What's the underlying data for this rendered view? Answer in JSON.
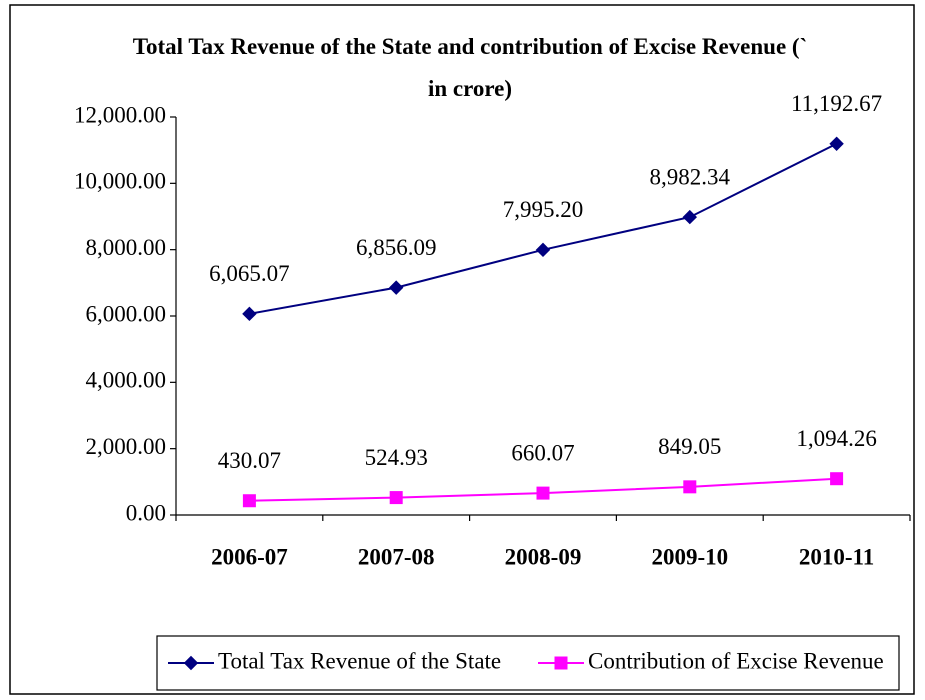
{
  "chart_data": {
    "type": "line",
    "title": "Total Tax Revenue of the State and contribution of Excise Revenue (`  in crore)",
    "categories": [
      "2006-07",
      "2007-08",
      "2008-09",
      "2009-10",
      "2010-11"
    ],
    "series": [
      {
        "name": "Total Tax Revenue of the State",
        "color": "#000080",
        "marker": "diamond",
        "values": [
          6065.07,
          6856.09,
          7995.2,
          8982.34,
          11192.67
        ],
        "value_labels": [
          "6,065.07",
          "6,856.09",
          "7,995.20",
          "8,982.34",
          "11,192.67"
        ]
      },
      {
        "name": "Contribution of Excise Revenue",
        "color": "#ff00ff",
        "marker": "square",
        "values": [
          430.07,
          524.93,
          660.07,
          849.05,
          1094.26
        ],
        "value_labels": [
          "430.07",
          "524.93",
          "660.07",
          "849.05",
          "1,094.26"
        ]
      }
    ],
    "ylim": [
      0,
      12000
    ],
    "yticks": [
      {
        "value": 0,
        "label": "0.00"
      },
      {
        "value": 2000,
        "label": "2,000.00"
      },
      {
        "value": 4000,
        "label": "4,000.00"
      },
      {
        "value": 6000,
        "label": "6,000.00"
      },
      {
        "value": 8000,
        "label": "8,000.00"
      },
      {
        "value": 10000,
        "label": "10,000.00"
      },
      {
        "value": 12000,
        "label": "12,000.00"
      }
    ],
    "legend": "bottom"
  }
}
